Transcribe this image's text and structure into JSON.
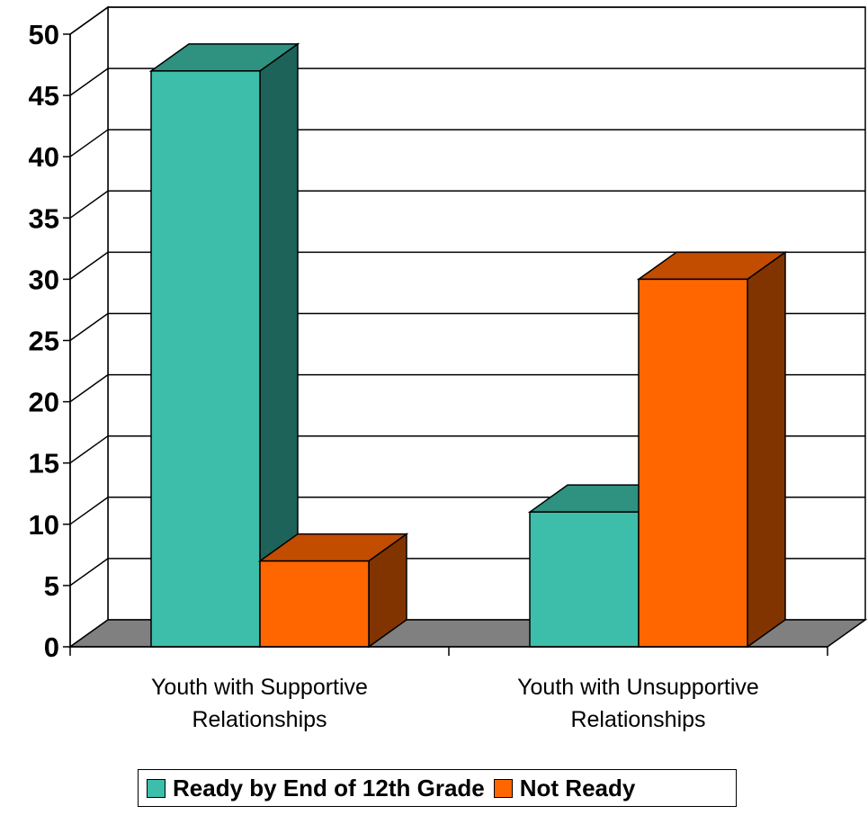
{
  "chart_data": {
    "type": "bar",
    "style": "3d-clustered",
    "title": "",
    "xlabel": "",
    "ylabel": "",
    "ylim": [
      0,
      50
    ],
    "yticks": [
      "0",
      "5",
      "10",
      "15",
      "20",
      "25",
      "30",
      "35",
      "40",
      "45",
      "50"
    ],
    "grid": true,
    "categories": [
      [
        "Youth with Supportive",
        "Relationships"
      ],
      [
        "Youth with Unsupportive",
        "Relationships"
      ]
    ],
    "series": [
      {
        "name": "Ready by End of 12th Grade",
        "values": [
          47,
          11
        ],
        "color": "#3CBEAA",
        "side_color": "#1E6359",
        "top_color": "#2F9180"
      },
      {
        "name": "Not Ready",
        "values": [
          7,
          30
        ],
        "color": "#FF6600",
        "side_color": "#823400",
        "top_color": "#C24C00"
      }
    ],
    "legend_position": "bottom",
    "floor_color": "#808080"
  }
}
